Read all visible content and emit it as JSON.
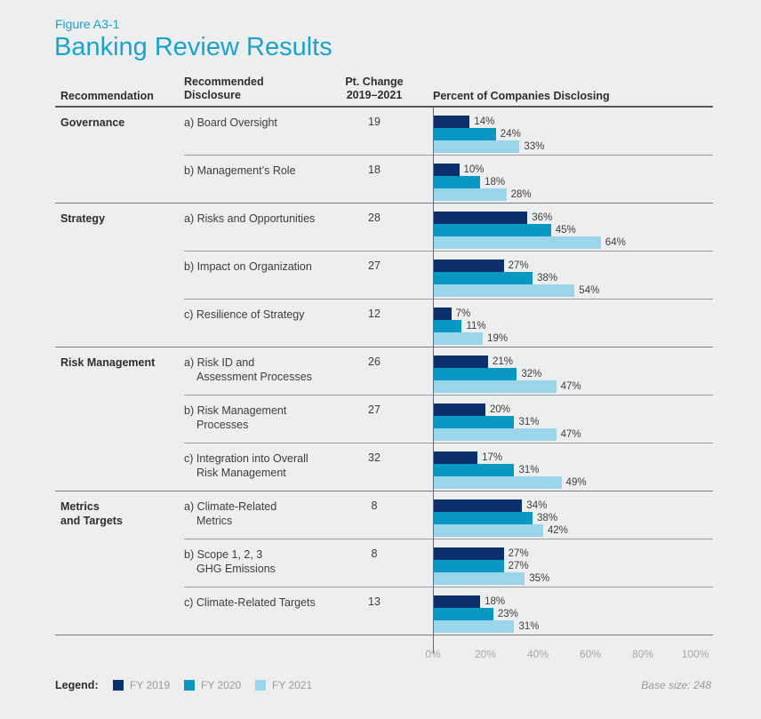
{
  "figure_label": "Figure A3-1",
  "title": "Banking Review Results",
  "headers": {
    "recommendation": "Recommendation",
    "disclosure_line1": "Recommended",
    "disclosure_line2": "Disclosure",
    "pt_change_line1": "Pt. Change",
    "pt_change_line2": "2019–2021",
    "percent": "Percent of Companies Disclosing"
  },
  "colors": {
    "FY 2019": "#0c2f6e",
    "FY 2020": "#0998c3",
    "FY 2021": "#9bd5ea",
    "accent": "#1aa3cc"
  },
  "chart_data": {
    "type": "bar",
    "orientation": "horizontal",
    "groups": [
      {
        "name": "Governance",
        "items": [
          {
            "disclosure": [
              "a) Board Oversight"
            ],
            "pt_change": "19",
            "values": [
              14,
              24,
              33
            ]
          },
          {
            "disclosure": [
              "b) Management’s Role"
            ],
            "pt_change": "18",
            "values": [
              10,
              18,
              28
            ]
          }
        ]
      },
      {
        "name": "Strategy",
        "items": [
          {
            "disclosure": [
              "a) Risks and Opportunities"
            ],
            "pt_change": "28",
            "values": [
              36,
              45,
              64
            ]
          },
          {
            "disclosure": [
              "b) Impact on Organization"
            ],
            "pt_change": "27",
            "values": [
              27,
              38,
              54
            ]
          },
          {
            "disclosure": [
              "c) Resilience of Strategy"
            ],
            "pt_change": "12",
            "values": [
              7,
              11,
              19
            ]
          }
        ]
      },
      {
        "name": "Risk Management",
        "items": [
          {
            "disclosure": [
              "a) Risk ID and",
              "Assessment Processes"
            ],
            "pt_change": "26",
            "values": [
              21,
              32,
              47
            ]
          },
          {
            "disclosure": [
              "b) Risk Management",
              "Processes"
            ],
            "pt_change": "27",
            "values": [
              20,
              31,
              47
            ]
          },
          {
            "disclosure": [
              "c) Integration into Overall",
              "Risk Management"
            ],
            "pt_change": "32",
            "values": [
              17,
              31,
              49
            ]
          }
        ]
      },
      {
        "name": "Metrics and Targets",
        "name_lines": [
          "Metrics",
          "and Targets"
        ],
        "items": [
          {
            "disclosure": [
              "a) Climate-Related",
              "Metrics"
            ],
            "pt_change": "8",
            "values": [
              34,
              38,
              42
            ]
          },
          {
            "disclosure": [
              "b) Scope 1, 2, 3",
              "GHG Emissions"
            ],
            "pt_change": "8",
            "values": [
              27,
              27,
              35
            ]
          },
          {
            "disclosure": [
              "c) Climate-Related Targets"
            ],
            "pt_change": "13",
            "values": [
              18,
              23,
              31
            ]
          }
        ]
      }
    ],
    "series": [
      "FY 2019",
      "FY 2020",
      "FY 2021"
    ],
    "value_suffix": "%",
    "xlim": [
      0,
      100
    ],
    "xticks": [
      "0%",
      "20%",
      "40%",
      "60%",
      "80%",
      "100%"
    ],
    "grid": false
  },
  "legend": {
    "title": "Legend:",
    "items": [
      "FY 2019",
      "FY 2020",
      "FY 2021"
    ]
  },
  "base_size": "Base size: 248"
}
